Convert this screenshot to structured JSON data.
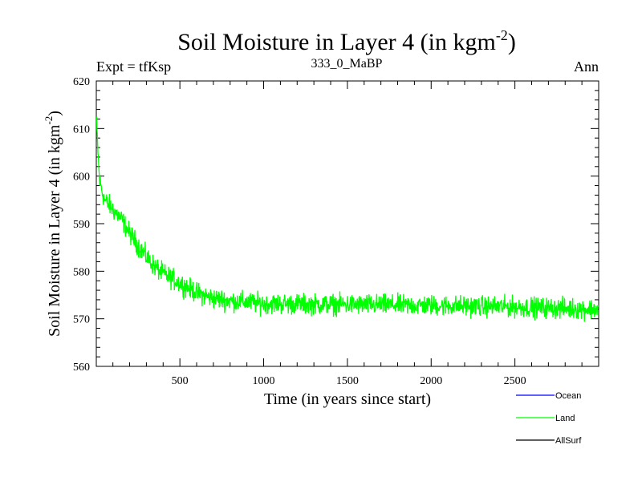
{
  "chart_data": {
    "type": "line",
    "title_main": "Soil Moisture in Layer 4 (in kgm",
    "title_sup": "-2",
    "title_close": ")",
    "expt_label": "Expt = tfKsp",
    "subtitle": "333_0_MaBP",
    "season": "Ann",
    "xlabel": "Time (in years since start)",
    "ylabel_main": "Soil Moisture in Layer 4 (in kgm",
    "ylabel_sup": "-2",
    "ylabel_close": ")",
    "xlim": [
      1,
      3000
    ],
    "ylim": [
      560,
      620
    ],
    "x_ticks": [
      500,
      1000,
      1500,
      2000,
      2500
    ],
    "y_ticks": [
      560,
      570,
      580,
      590,
      600,
      610,
      620
    ],
    "legend": [
      {
        "name": "Ocean",
        "color": "#0000ff"
      },
      {
        "name": "Land",
        "color": "#00ff00"
      },
      {
        "name": "AllSurf",
        "color": "#000000"
      }
    ],
    "series": [
      {
        "name": "Land",
        "color": "#00ff00",
        "trend_points": [
          [
            1,
            612
          ],
          [
            20,
            599
          ],
          [
            50,
            595
          ],
          [
            100,
            593
          ],
          [
            150,
            591
          ],
          [
            200,
            588
          ],
          [
            250,
            585.5
          ],
          [
            300,
            583
          ],
          [
            350,
            581
          ],
          [
            400,
            579.5
          ],
          [
            450,
            578.5
          ],
          [
            500,
            577.5
          ],
          [
            550,
            576.5
          ],
          [
            600,
            575.5
          ],
          [
            650,
            574.8
          ],
          [
            700,
            574.3
          ],
          [
            800,
            573.8
          ],
          [
            1000,
            573.2
          ],
          [
            1500,
            573
          ],
          [
            2000,
            572.8
          ],
          [
            2500,
            572.5
          ],
          [
            3000,
            572
          ]
        ],
        "noise_amplitude": 2.0
      }
    ]
  }
}
